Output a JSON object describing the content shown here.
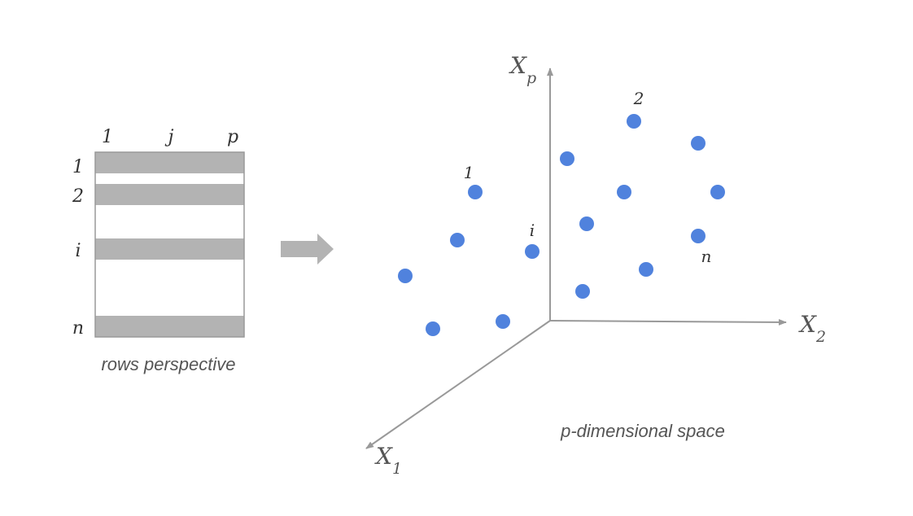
{
  "matrix": {
    "column_labels": [
      "1",
      "j",
      "p"
    ],
    "row_labels": [
      "1",
      "2",
      "i",
      "n"
    ],
    "caption": "rows perspective"
  },
  "space": {
    "caption": "p-dimensional space",
    "axes": {
      "vertical": {
        "letter": "X",
        "subscript": "p"
      },
      "right": {
        "letter": "X",
        "subscript": "2"
      },
      "diagonal": {
        "letter": "X",
        "subscript": "1"
      }
    },
    "point_labels": [
      "1",
      "2",
      "i",
      "n"
    ],
    "point_count": 16
  },
  "colors": {
    "row_fill": "#b3b3b3",
    "matrix_border": "#999999",
    "arrow": "#b3b3b3",
    "axis": "#999999",
    "point": "#5082dd"
  }
}
